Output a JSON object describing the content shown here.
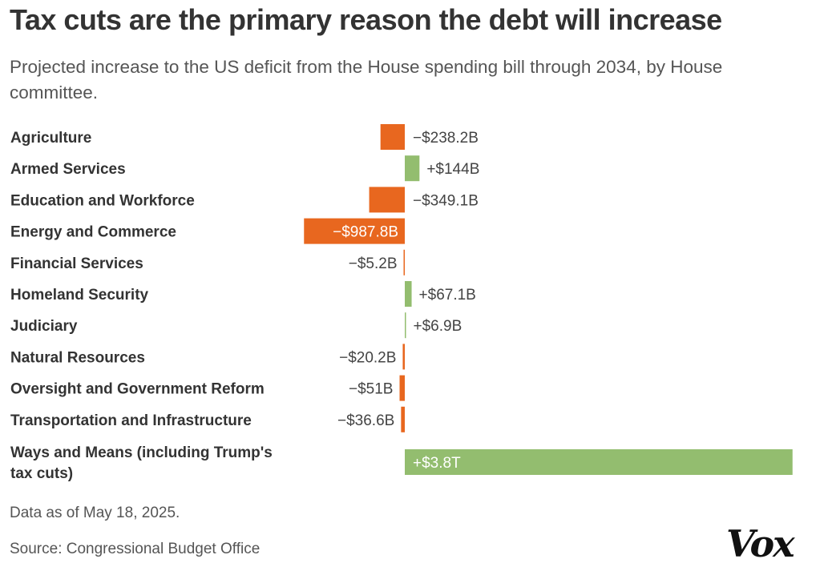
{
  "title": "Tax cuts are the primary reason the debt will increase",
  "subtitle": "Projected increase to the US deficit from the House spending bill through 2034, by House committee.",
  "note": "Data as of May 18, 2025.",
  "source": "Source: Congressional Budget Office",
  "logo": "Vox",
  "colors": {
    "negative": "#e8671f",
    "positive": "#93bd6f",
    "inside_label": "#ffffff",
    "text": "#333333"
  },
  "chart_data": {
    "type": "bar",
    "orientation": "horizontal",
    "unit": "billions of dollars",
    "categories": [
      "Agriculture",
      "Armed Services",
      "Education and Workforce",
      "Energy and Commerce",
      "Financial Services",
      "Homeland Security",
      "Judiciary",
      "Natural Resources",
      "Oversight and Government Reform",
      "Transportation and Infrastructure",
      "Ways and Means (including Trump's tax cuts)"
    ],
    "values": [
      -238.2,
      144,
      -349.1,
      -987.8,
      -5.2,
      67.1,
      6.9,
      -20.2,
      -51,
      -36.6,
      3800
    ],
    "data_labels": [
      "−$238.2B",
      "+$144B",
      "−$349.1B",
      "−$987.8B",
      "−$5.2B",
      "+$67.1B",
      "+$6.9B",
      "−$20.2B",
      "−$51B",
      "−$36.6B",
      "+$3.8T"
    ],
    "xlabel": "",
    "ylabel": "",
    "grid": false
  }
}
